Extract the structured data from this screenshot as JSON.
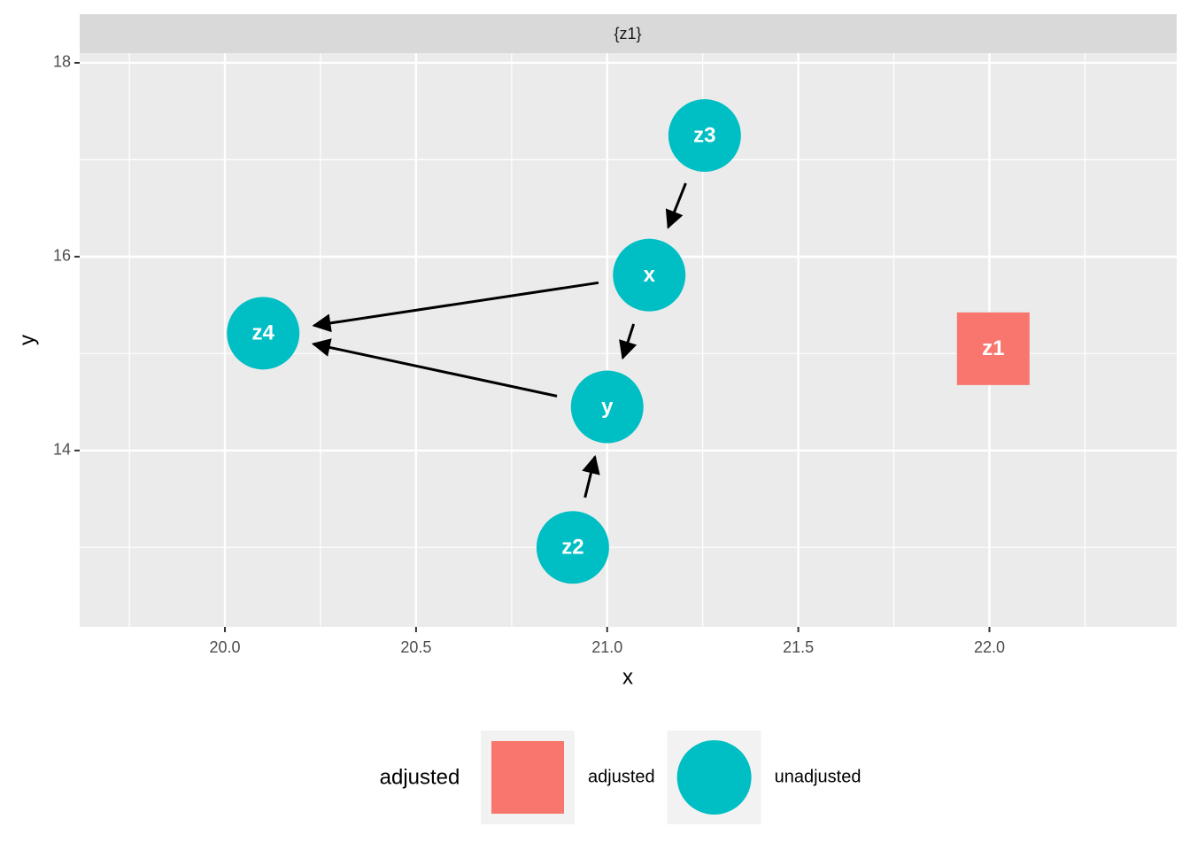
{
  "chart_data": {
    "type": "dag",
    "strip": "{z1}",
    "x_label": "x",
    "y_label": "y",
    "legend_title": "adjusted",
    "legend_position": "bottom",
    "grid": true,
    "xlim": [
      19.62,
      22.49
    ],
    "ylim": [
      12.18,
      18.1
    ],
    "xticks": [
      {
        "value": 20,
        "label": "20.0"
      },
      {
        "value": 20.5,
        "label": "20.5"
      },
      {
        "value": 21,
        "label": "21.0"
      },
      {
        "value": 21.5,
        "label": "21.5"
      },
      {
        "value": 22,
        "label": "22.0"
      }
    ],
    "yticks": [
      14,
      16,
      18
    ],
    "series": [
      {
        "name": "adjusted",
        "color": "#F8766D",
        "shape": "square",
        "labels": [
          "z1"
        ],
        "x": [
          22.01
        ],
        "y": [
          15.05
        ]
      },
      {
        "name": "unadjusted",
        "color": "#00BFC4",
        "shape": "circle",
        "labels": [
          "z3",
          "x",
          "z4",
          "y",
          "z2"
        ],
        "x": [
          21.255,
          21.11,
          20.1,
          21.0,
          20.91
        ],
        "y": [
          17.25,
          15.81,
          15.21,
          14.45,
          13.0
        ]
      }
    ],
    "edges": [
      {
        "from": "z3",
        "to": "x"
      },
      {
        "from": "x",
        "to": "z4"
      },
      {
        "from": "x",
        "to": "y"
      },
      {
        "from": "y",
        "to": "z4"
      },
      {
        "from": "z2",
        "to": "y"
      }
    ]
  }
}
